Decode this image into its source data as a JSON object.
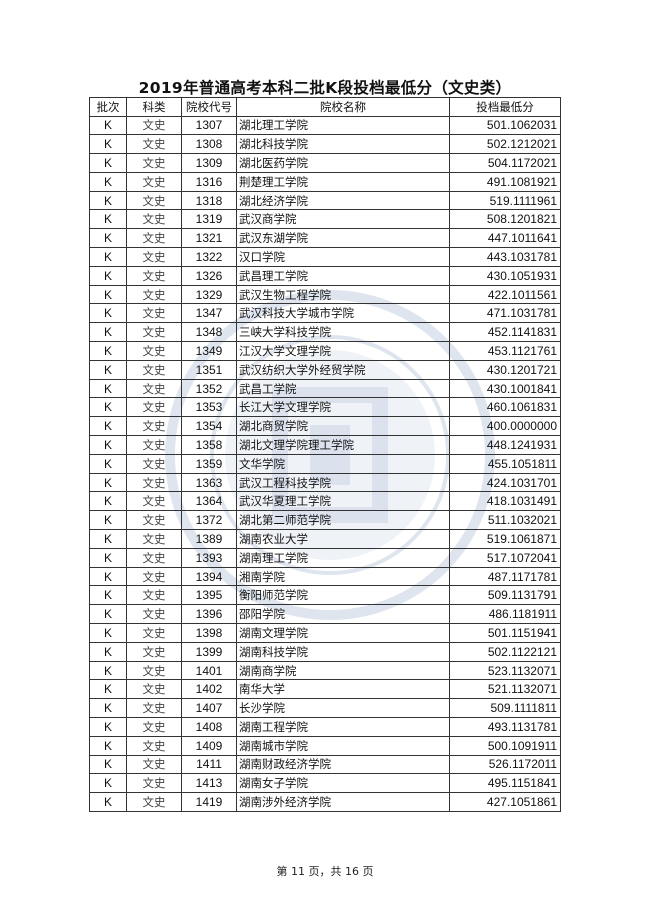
{
  "title": "2019年普通高考本科二批K段投档最低分（文史类）",
  "columns": [
    "批次",
    "科类",
    "院校代号",
    "院校名称",
    "投档最低分"
  ],
  "rows": [
    [
      "K",
      "文史",
      "1307",
      "湖北理工学院",
      "501.1062031"
    ],
    [
      "K",
      "文史",
      "1308",
      "湖北科技学院",
      "502.1212021"
    ],
    [
      "K",
      "文史",
      "1309",
      "湖北医药学院",
      "504.1172021"
    ],
    [
      "K",
      "文史",
      "1316",
      "荆楚理工学院",
      "491.1081921"
    ],
    [
      "K",
      "文史",
      "1318",
      "湖北经济学院",
      "519.1111961"
    ],
    [
      "K",
      "文史",
      "1319",
      "武汉商学院",
      "508.1201821"
    ],
    [
      "K",
      "文史",
      "1321",
      "武汉东湖学院",
      "447.1011641"
    ],
    [
      "K",
      "文史",
      "1322",
      "汉口学院",
      "443.1031781"
    ],
    [
      "K",
      "文史",
      "1326",
      "武昌理工学院",
      "430.1051931"
    ],
    [
      "K",
      "文史",
      "1329",
      "武汉生物工程学院",
      "422.1011561"
    ],
    [
      "K",
      "文史",
      "1347",
      "武汉科技大学城市学院",
      "471.1031781"
    ],
    [
      "K",
      "文史",
      "1348",
      "三峡大学科技学院",
      "452.1141831"
    ],
    [
      "K",
      "文史",
      "1349",
      "江汉大学文理学院",
      "453.1121761"
    ],
    [
      "K",
      "文史",
      "1351",
      "武汉纺织大学外经贸学院",
      "430.1201721"
    ],
    [
      "K",
      "文史",
      "1352",
      "武昌工学院",
      "430.1001841"
    ],
    [
      "K",
      "文史",
      "1353",
      "长江大学文理学院",
      "460.1061831"
    ],
    [
      "K",
      "文史",
      "1354",
      "湖北商贸学院",
      "400.0000000"
    ],
    [
      "K",
      "文史",
      "1358",
      "湖北文理学院理工学院",
      "448.1241931"
    ],
    [
      "K",
      "文史",
      "1359",
      "文华学院",
      "455.1051811"
    ],
    [
      "K",
      "文史",
      "1363",
      "武汉工程科技学院",
      "424.1031701"
    ],
    [
      "K",
      "文史",
      "1364",
      "武汉华夏理工学院",
      "418.1031491"
    ],
    [
      "K",
      "文史",
      "1372",
      "湖北第二师范学院",
      "511.1032021"
    ],
    [
      "K",
      "文史",
      "1389",
      "湖南农业大学",
      "519.1061871"
    ],
    [
      "K",
      "文史",
      "1393",
      "湖南理工学院",
      "517.1072041"
    ],
    [
      "K",
      "文史",
      "1394",
      "湘南学院",
      "487.1171781"
    ],
    [
      "K",
      "文史",
      "1395",
      "衡阳师范学院",
      "509.1131791"
    ],
    [
      "K",
      "文史",
      "1396",
      "邵阳学院",
      "486.1181911"
    ],
    [
      "K",
      "文史",
      "1398",
      "湖南文理学院",
      "501.1151941"
    ],
    [
      "K",
      "文史",
      "1399",
      "湖南科技学院",
      "502.1122121"
    ],
    [
      "K",
      "文史",
      "1401",
      "湖南商学院",
      "523.1132071"
    ],
    [
      "K",
      "文史",
      "1402",
      "南华大学",
      "521.1132071"
    ],
    [
      "K",
      "文史",
      "1407",
      "长沙学院",
      "509.1111811"
    ],
    [
      "K",
      "文史",
      "1408",
      "湖南工程学院",
      "493.1131781"
    ],
    [
      "K",
      "文史",
      "1409",
      "湖南城市学院",
      "500.1091911"
    ],
    [
      "K",
      "文史",
      "1411",
      "湖南财政经济学院",
      "526.1172011"
    ],
    [
      "K",
      "文史",
      "1413",
      "湖南女子学院",
      "495.1151841"
    ],
    [
      "K",
      "文史",
      "1419",
      "湖南涉外经济学院",
      "427.1051861"
    ]
  ],
  "footer": "第 11 页，共 16 页",
  "colors": {
    "watermark": "#9fb3cf",
    "border": "#333333"
  }
}
